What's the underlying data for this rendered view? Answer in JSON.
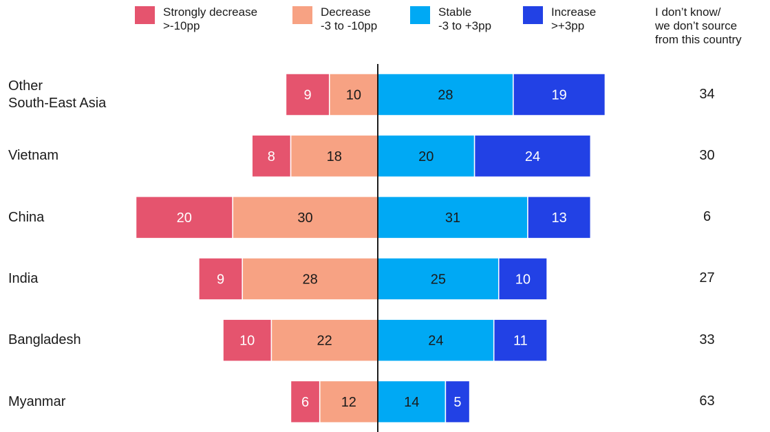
{
  "legend": [
    {
      "label": [
        "Strongly decrease",
        ">-10pp"
      ],
      "color": "#e5546e",
      "icon": "swatch"
    },
    {
      "label": [
        "Decrease",
        "-3 to -10pp"
      ],
      "color": "#f7a283",
      "icon": "swatch"
    },
    {
      "label": [
        "Stable",
        "-3 to +3pp"
      ],
      "color": "#00a9f4",
      "icon": "swatch"
    },
    {
      "label": [
        "Increase",
        ">+3pp"
      ],
      "color": "#2241e5",
      "icon": "swatch"
    }
  ],
  "unknown_header": [
    "I don’t know/",
    "we don’t source",
    "from this country"
  ],
  "chart_data": {
    "type": "bar",
    "orientation": "horizontal-diverging",
    "categories": [
      [
        "Other",
        "South-East Asia"
      ],
      [
        "Vietnam"
      ],
      [
        "China"
      ],
      [
        "India"
      ],
      [
        "Bangladesh"
      ],
      [
        "Myanmar"
      ]
    ],
    "series": [
      {
        "name": "Strongly decrease",
        "side": "negative",
        "values": [
          9,
          8,
          20,
          9,
          10,
          6
        ]
      },
      {
        "name": "Decrease",
        "side": "negative",
        "values": [
          10,
          18,
          30,
          28,
          22,
          12
        ]
      },
      {
        "name": "Stable",
        "side": "positive",
        "values": [
          28,
          20,
          31,
          25,
          24,
          14
        ]
      },
      {
        "name": "Increase",
        "side": "positive",
        "values": [
          19,
          24,
          13,
          10,
          11,
          5
        ]
      }
    ],
    "unknown_values": [
      34,
      30,
      6,
      27,
      33,
      63
    ],
    "label_colors": {
      "light": "#ffffff",
      "dark": "#1a1a1a"
    },
    "axis_color": "#1a1a1a",
    "grid": false,
    "legend_position": "top"
  }
}
